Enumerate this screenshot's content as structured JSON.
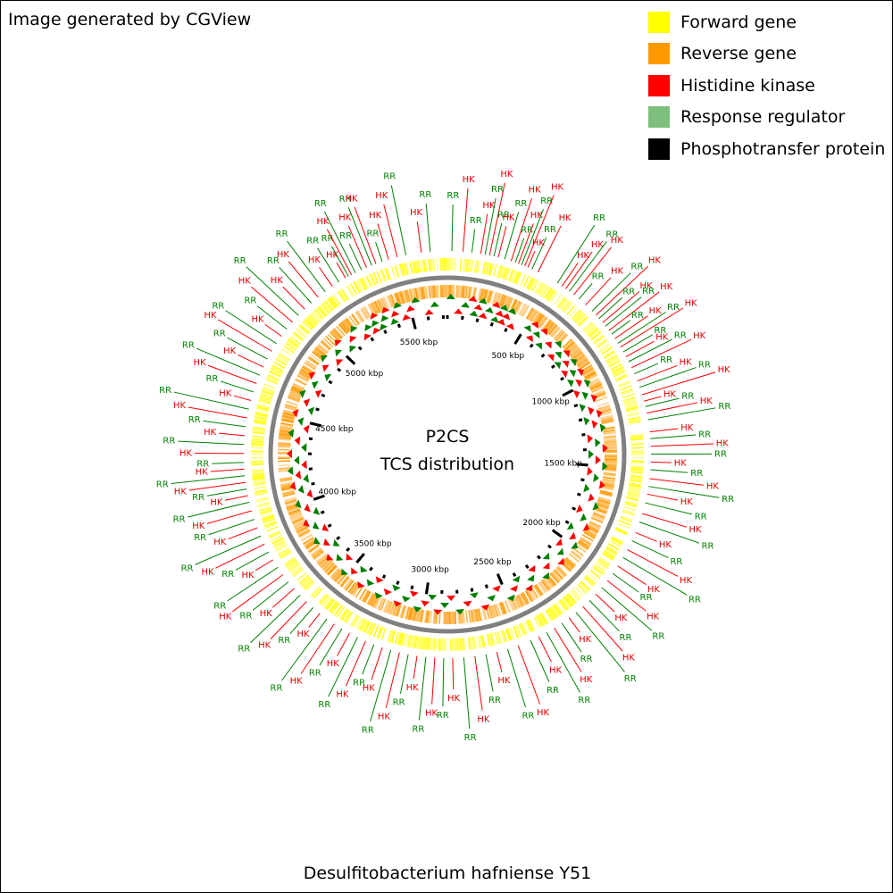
{
  "credit": "Image generated by CGView",
  "organism": "Desulfitobacterium hafniense Y51",
  "center_title": "P2CS",
  "center_subtitle": "TCS distribution",
  "legend": [
    {
      "label": "Forward gene",
      "color": "#ffff00"
    },
    {
      "label": "Reverse gene",
      "color": "#ff9900"
    },
    {
      "label": "Histidine kinase",
      "color": "#ff0000"
    },
    {
      "label": "Response regulator",
      "color": "#7dbf7d"
    },
    {
      "label": "Phosphotransfer protein",
      "color": "#000000"
    }
  ],
  "colors": {
    "hk_label": "#e00000",
    "rr_label": "#008000",
    "backbone": "#808080"
  },
  "chart_data": {
    "type": "circular-genome-map",
    "genome_length_kbp": 5727,
    "ticks_kbp": [
      {
        "value": 500,
        "label": "500 kbp"
      },
      {
        "value": 1000,
        "label": "1000 kbp"
      },
      {
        "value": 1500,
        "label": "1500 kbp"
      },
      {
        "value": 2000,
        "label": "2000 kbp"
      },
      {
        "value": 2500,
        "label": "2500 kbp"
      },
      {
        "value": 3000,
        "label": "3000 kbp"
      },
      {
        "value": 3500,
        "label": "3500 kbp"
      },
      {
        "value": 4000,
        "label": "4000 kbp"
      },
      {
        "value": 4500,
        "label": "4500 kbp"
      },
      {
        "value": 5000,
        "label": "5000 kbp"
      },
      {
        "value": 5500,
        "label": "5500 kbp"
      }
    ],
    "features": [
      {
        "type": "HK",
        "pos": 5250
      },
      {
        "type": "RR",
        "pos": 5265
      },
      {
        "type": "HK",
        "pos": 5280
      },
      {
        "type": "RR",
        "pos": 5300
      },
      {
        "type": "RR",
        "pos": 5330
      },
      {
        "type": "HK",
        "pos": 5355
      },
      {
        "type": "RR",
        "pos": 5380
      },
      {
        "type": "HK",
        "pos": 5400
      },
      {
        "type": "RR",
        "pos": 5430
      },
      {
        "type": "HK",
        "pos": 5460
      },
      {
        "type": "HK",
        "pos": 5500
      },
      {
        "type": "RR",
        "pos": 5540
      },
      {
        "type": "HK",
        "pos": 5610
      },
      {
        "type": "RR",
        "pos": 5650
      },
      {
        "type": "RR",
        "pos": 20
      },
      {
        "type": "HK",
        "pos": 70
      },
      {
        "type": "RR",
        "pos": 110
      },
      {
        "type": "HK",
        "pos": 150
      },
      {
        "type": "RR",
        "pos": 170
      },
      {
        "type": "HK",
        "pos": 190
      },
      {
        "type": "RR",
        "pos": 210
      },
      {
        "type": "HK",
        "pos": 230
      },
      {
        "type": "RR",
        "pos": 260
      },
      {
        "type": "HK",
        "pos": 290
      },
      {
        "type": "RR",
        "pos": 310
      },
      {
        "type": "HK",
        "pos": 325
      },
      {
        "type": "RR",
        "pos": 340
      },
      {
        "type": "HK",
        "pos": 355
      },
      {
        "type": "HK",
        "pos": 370
      },
      {
        "type": "RR",
        "pos": 390
      },
      {
        "type": "HK",
        "pos": 420
      },
      {
        "type": "RR",
        "pos": 520
      },
      {
        "type": "HK",
        "pos": 545
      },
      {
        "type": "HK",
        "pos": 565
      },
      {
        "type": "RR",
        "pos": 585
      },
      {
        "type": "HK",
        "pos": 610
      },
      {
        "type": "RR",
        "pos": 640
      },
      {
        "type": "HK",
        "pos": 680
      },
      {
        "type": "RR",
        "pos": 720
      },
      {
        "type": "HK",
        "pos": 745
      },
      {
        "type": "RR",
        "pos": 765
      },
      {
        "type": "HK",
        "pos": 790
      },
      {
        "type": "RR",
        "pos": 810
      },
      {
        "type": "HK",
        "pos": 835
      },
      {
        "type": "RR",
        "pos": 855
      },
      {
        "type": "HK",
        "pos": 880
      },
      {
        "type": "RR",
        "pos": 905
      },
      {
        "type": "HK",
        "pos": 925
      },
      {
        "type": "RR",
        "pos": 950
      },
      {
        "type": "HK",
        "pos": 975
      },
      {
        "type": "RR",
        "pos": 1000
      },
      {
        "type": "HK",
        "pos": 1030
      },
      {
        "type": "RR",
        "pos": 1060
      },
      {
        "type": "HK",
        "pos": 1095
      },
      {
        "type": "RR",
        "pos": 1125
      },
      {
        "type": "HK",
        "pos": 1160
      },
      {
        "type": "HK",
        "pos": 1190
      },
      {
        "type": "RR",
        "pos": 1215
      },
      {
        "type": "HK",
        "pos": 1245
      },
      {
        "type": "RR",
        "pos": 1275
      },
      {
        "type": "HK",
        "pos": 1330
      },
      {
        "type": "RR",
        "pos": 1360
      },
      {
        "type": "HK",
        "pos": 1395
      },
      {
        "type": "RR",
        "pos": 1430
      },
      {
        "type": "HK",
        "pos": 1465
      },
      {
        "type": "RR",
        "pos": 1500
      },
      {
        "type": "HK",
        "pos": 1540
      },
      {
        "type": "RR",
        "pos": 1575
      },
      {
        "type": "HK",
        "pos": 1610
      },
      {
        "type": "RR",
        "pos": 1650
      },
      {
        "type": "HK",
        "pos": 1700
      },
      {
        "type": "RR",
        "pos": 1740
      },
      {
        "type": "HK",
        "pos": 1790
      },
      {
        "type": "RR",
        "pos": 1830
      },
      {
        "type": "HK",
        "pos": 1875
      },
      {
        "type": "RR",
        "pos": 1915
      },
      {
        "type": "HK",
        "pos": 1960
      },
      {
        "type": "RR",
        "pos": 2000
      },
      {
        "type": "HK",
        "pos": 2040
      },
      {
        "type": "RR",
        "pos": 2080
      },
      {
        "type": "HK",
        "pos": 2120
      },
      {
        "type": "RR",
        "pos": 2160
      },
      {
        "type": "HK",
        "pos": 2200
      },
      {
        "type": "RR",
        "pos": 2240
      },
      {
        "type": "HK",
        "pos": 2280
      },
      {
        "type": "RR",
        "pos": 2320
      },
      {
        "type": "HK",
        "pos": 2360
      },
      {
        "type": "RR",
        "pos": 2400
      },
      {
        "type": "HK",
        "pos": 2440
      },
      {
        "type": "RR",
        "pos": 2480
      },
      {
        "type": "HK",
        "pos": 2540
      },
      {
        "type": "RR",
        "pos": 2590
      },
      {
        "type": "HK",
        "pos": 2640
      },
      {
        "type": "RR",
        "pos": 2690
      },
      {
        "type": "HK",
        "pos": 2740
      },
      {
        "type": "RR",
        "pos": 2790
      },
      {
        "type": "HK",
        "pos": 2840
      },
      {
        "type": "RR",
        "pos": 2880
      },
      {
        "type": "HK",
        "pos": 2920
      },
      {
        "type": "RR",
        "pos": 2960
      },
      {
        "type": "HK",
        "pos": 3000
      },
      {
        "type": "RR",
        "pos": 3040
      },
      {
        "type": "HK",
        "pos": 3080
      },
      {
        "type": "RR",
        "pos": 3120
      },
      {
        "type": "HK",
        "pos": 3160
      },
      {
        "type": "RR",
        "pos": 3200
      },
      {
        "type": "HK",
        "pos": 3240
      },
      {
        "type": "RR",
        "pos": 3280
      },
      {
        "type": "HK",
        "pos": 3320
      },
      {
        "type": "RR",
        "pos": 3360
      },
      {
        "type": "HK",
        "pos": 3400
      },
      {
        "type": "RR",
        "pos": 3440
      },
      {
        "type": "HK",
        "pos": 3480
      },
      {
        "type": "RR",
        "pos": 3520
      },
      {
        "type": "HK",
        "pos": 3560
      },
      {
        "type": "RR",
        "pos": 3600
      },
      {
        "type": "HK",
        "pos": 3640
      },
      {
        "type": "RR",
        "pos": 3680
      },
      {
        "type": "HK",
        "pos": 3720
      },
      {
        "type": "RR",
        "pos": 3760
      },
      {
        "type": "HK",
        "pos": 3800
      },
      {
        "type": "RR",
        "pos": 3840
      },
      {
        "type": "HK",
        "pos": 3880
      },
      {
        "type": "RR",
        "pos": 3920
      },
      {
        "type": "HK",
        "pos": 3960
      },
      {
        "type": "RR",
        "pos": 4000
      },
      {
        "type": "HK",
        "pos": 4040
      },
      {
        "type": "RR",
        "pos": 4080
      },
      {
        "type": "HK",
        "pos": 4110
      },
      {
        "type": "RR",
        "pos": 4140
      },
      {
        "type": "HK",
        "pos": 4170
      },
      {
        "type": "RR",
        "pos": 4200
      },
      {
        "type": "HK",
        "pos": 4230
      },
      {
        "type": "RR",
        "pos": 4260
      },
      {
        "type": "HK",
        "pos": 4300
      },
      {
        "type": "RR",
        "pos": 4340
      },
      {
        "type": "HK",
        "pos": 4380
      },
      {
        "type": "RR",
        "pos": 4420
      },
      {
        "type": "HK",
        "pos": 4460
      },
      {
        "type": "RR",
        "pos": 4500
      },
      {
        "type": "HK",
        "pos": 4540
      },
      {
        "type": "RR",
        "pos": 4580
      },
      {
        "type": "HK",
        "pos": 4620
      },
      {
        "type": "RR",
        "pos": 4660
      },
      {
        "type": "HK",
        "pos": 4700
      },
      {
        "type": "RR",
        "pos": 4740
      },
      {
        "type": "HK",
        "pos": 4780
      },
      {
        "type": "RR",
        "pos": 4820
      },
      {
        "type": "HK",
        "pos": 4860
      },
      {
        "type": "RR",
        "pos": 4900
      },
      {
        "type": "HK",
        "pos": 4940
      },
      {
        "type": "RR",
        "pos": 4980
      },
      {
        "type": "HK",
        "pos": 5020
      },
      {
        "type": "RR",
        "pos": 5060
      },
      {
        "type": "HK",
        "pos": 5100
      },
      {
        "type": "RR",
        "pos": 5140
      },
      {
        "type": "HK",
        "pos": 5180
      },
      {
        "type": "RR",
        "pos": 5215
      }
    ]
  }
}
